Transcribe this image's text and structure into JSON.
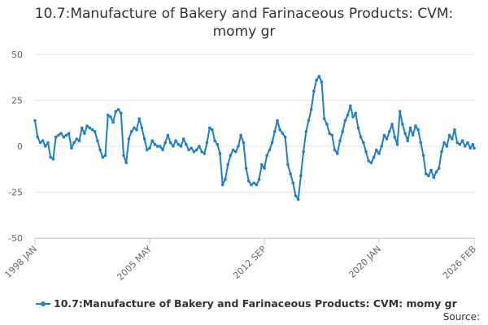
{
  "chart_data": {
    "type": "line",
    "title_lines": [
      "10.7:Manufacture of Bakery and Farinaceous Products: CVM:",
      "momy gr"
    ],
    "xlabel": "",
    "ylabel": "",
    "ylim": [
      -50,
      50
    ],
    "yticks": [
      50,
      25,
      0,
      -25,
      -50
    ],
    "xlim": [
      "1998-01",
      "2026-02"
    ],
    "xticks": [
      {
        "label": "1998 JAN",
        "date": "1998-01"
      },
      {
        "label": "2005 MAY",
        "date": "2005-05"
      },
      {
        "label": "2012 SEP",
        "date": "2012-09"
      },
      {
        "label": "2020 JAN",
        "date": "2020-01"
      },
      {
        "label": "2026 FEB",
        "date": "2026-02"
      }
    ],
    "grid": "horizontal",
    "legend_position": "bottom",
    "color": "#1f7fc4",
    "series": [
      {
        "name": "10.7:Manufacture of Bakery and Farinaceous Products: CVM: momy gr",
        "points": [
          [
            "1998-01",
            14
          ],
          [
            "1998-03",
            5
          ],
          [
            "1998-05",
            2
          ],
          [
            "1998-07",
            3
          ],
          [
            "1998-09",
            0
          ],
          [
            "1998-11",
            2
          ],
          [
            "1999-01",
            -6
          ],
          [
            "1999-03",
            -7
          ],
          [
            "1999-05",
            5
          ],
          [
            "1999-07",
            6
          ],
          [
            "1999-09",
            7
          ],
          [
            "1999-11",
            5
          ],
          [
            "2000-01",
            6
          ],
          [
            "2000-03",
            7
          ],
          [
            "2000-05",
            -1
          ],
          [
            "2000-07",
            2
          ],
          [
            "2000-09",
            4
          ],
          [
            "2000-11",
            3
          ],
          [
            "2001-01",
            10
          ],
          [
            "2001-03",
            7
          ],
          [
            "2001-05",
            11
          ],
          [
            "2001-07",
            10
          ],
          [
            "2001-09",
            9
          ],
          [
            "2001-11",
            8
          ],
          [
            "2002-01",
            3
          ],
          [
            "2002-03",
            -2
          ],
          [
            "2002-05",
            -6
          ],
          [
            "2002-07",
            -5
          ],
          [
            "2002-09",
            17
          ],
          [
            "2002-11",
            16
          ],
          [
            "2003-01",
            13
          ],
          [
            "2003-03",
            19
          ],
          [
            "2003-05",
            20
          ],
          [
            "2003-07",
            18
          ],
          [
            "2003-09",
            -5
          ],
          [
            "2003-11",
            -9
          ],
          [
            "2004-01",
            4
          ],
          [
            "2004-03",
            8
          ],
          [
            "2004-05",
            10
          ],
          [
            "2004-07",
            9
          ],
          [
            "2004-09",
            15
          ],
          [
            "2004-11",
            10
          ],
          [
            "2005-01",
            4
          ],
          [
            "2005-03",
            -2
          ],
          [
            "2005-05",
            -1
          ],
          [
            "2005-07",
            3
          ],
          [
            "2005-09",
            1
          ],
          [
            "2005-11",
            0
          ],
          [
            "2006-01",
            0
          ],
          [
            "2006-03",
            -2
          ],
          [
            "2006-05",
            2
          ],
          [
            "2006-07",
            6
          ],
          [
            "2006-09",
            2
          ],
          [
            "2006-11",
            0
          ],
          [
            "2007-01",
            3
          ],
          [
            "2007-03",
            1
          ],
          [
            "2007-05",
            0
          ],
          [
            "2007-07",
            4
          ],
          [
            "2007-09",
            1
          ],
          [
            "2007-11",
            -2
          ],
          [
            "2008-01",
            -1
          ],
          [
            "2008-03",
            -3
          ],
          [
            "2008-05",
            -2
          ],
          [
            "2008-07",
            0
          ],
          [
            "2008-09",
            -3
          ],
          [
            "2008-11",
            -4
          ],
          [
            "2009-01",
            2
          ],
          [
            "2009-03",
            10
          ],
          [
            "2009-05",
            9
          ],
          [
            "2009-07",
            3
          ],
          [
            "2009-09",
            1
          ],
          [
            "2009-11",
            -4
          ],
          [
            "2010-01",
            -21
          ],
          [
            "2010-03",
            -18
          ],
          [
            "2010-05",
            -10
          ],
          [
            "2010-07",
            -5
          ],
          [
            "2010-09",
            -2
          ],
          [
            "2010-11",
            -3
          ],
          [
            "2011-01",
            0
          ],
          [
            "2011-03",
            6
          ],
          [
            "2011-05",
            2
          ],
          [
            "2011-07",
            -12
          ],
          [
            "2011-09",
            -19
          ],
          [
            "2011-11",
            -21
          ],
          [
            "2012-01",
            -20
          ],
          [
            "2012-03",
            -21
          ],
          [
            "2012-05",
            -18
          ],
          [
            "2012-07",
            -10
          ],
          [
            "2012-09",
            -12
          ],
          [
            "2012-11",
            -5
          ],
          [
            "2013-01",
            -2
          ],
          [
            "2013-03",
            2
          ],
          [
            "2013-05",
            8
          ],
          [
            "2013-07",
            14
          ],
          [
            "2013-09",
            9
          ],
          [
            "2013-11",
            7
          ],
          [
            "2014-01",
            5
          ],
          [
            "2014-03",
            -10
          ],
          [
            "2014-05",
            -15
          ],
          [
            "2014-07",
            -20
          ],
          [
            "2014-09",
            -27
          ],
          [
            "2014-11",
            -29
          ],
          [
            "2015-01",
            -16
          ],
          [
            "2015-03",
            -3
          ],
          [
            "2015-05",
            8
          ],
          [
            "2015-07",
            14
          ],
          [
            "2015-09",
            20
          ],
          [
            "2015-11",
            30
          ],
          [
            "2016-01",
            36
          ],
          [
            "2016-03",
            38
          ],
          [
            "2016-05",
            35
          ],
          [
            "2016-07",
            15
          ],
          [
            "2016-09",
            12
          ],
          [
            "2016-11",
            7
          ],
          [
            "2017-01",
            6
          ],
          [
            "2017-03",
            -2
          ],
          [
            "2017-05",
            -4
          ],
          [
            "2017-07",
            3
          ],
          [
            "2017-09",
            8
          ],
          [
            "2017-11",
            14
          ],
          [
            "2018-01",
            17
          ],
          [
            "2018-03",
            22
          ],
          [
            "2018-05",
            16
          ],
          [
            "2018-07",
            18
          ],
          [
            "2018-09",
            10
          ],
          [
            "2018-11",
            5
          ],
          [
            "2019-01",
            2
          ],
          [
            "2019-03",
            -3
          ],
          [
            "2019-05",
            -8
          ],
          [
            "2019-07",
            -9
          ],
          [
            "2019-09",
            -6
          ],
          [
            "2019-11",
            -2
          ],
          [
            "2020-01",
            -4
          ],
          [
            "2020-03",
            0
          ],
          [
            "2020-05",
            6
          ],
          [
            "2020-07",
            4
          ],
          [
            "2020-09",
            8
          ],
          [
            "2020-11",
            12
          ],
          [
            "2021-01",
            5
          ],
          [
            "2021-03",
            1
          ],
          [
            "2021-05",
            19
          ],
          [
            "2021-07",
            12
          ],
          [
            "2021-09",
            7
          ],
          [
            "2021-11",
            3
          ],
          [
            "2022-01",
            10
          ],
          [
            "2022-03",
            6
          ],
          [
            "2022-05",
            11
          ],
          [
            "2022-07",
            9
          ],
          [
            "2022-09",
            2
          ],
          [
            "2022-11",
            -5
          ],
          [
            "2023-01",
            -15
          ],
          [
            "2023-03",
            -16
          ],
          [
            "2023-05",
            -13
          ],
          [
            "2023-07",
            -17
          ],
          [
            "2023-09",
            -14
          ],
          [
            "2023-11",
            -12
          ],
          [
            "2024-01",
            -3
          ],
          [
            "2024-03",
            2
          ],
          [
            "2024-05",
            0
          ],
          [
            "2024-07",
            6
          ],
          [
            "2024-09",
            4
          ],
          [
            "2024-11",
            9
          ],
          [
            "2025-01",
            2
          ],
          [
            "2025-03",
            1
          ],
          [
            "2025-05",
            3
          ],
          [
            "2025-07",
            0
          ],
          [
            "2025-09",
            2
          ],
          [
            "2025-11",
            -1
          ],
          [
            "2026-01",
            1
          ],
          [
            "2026-02",
            -1
          ]
        ]
      }
    ]
  },
  "legend": {
    "label": "10.7:Manufacture of Bakery and Farinaceous Products: CVM: momy gr"
  },
  "source_label": "Source:"
}
